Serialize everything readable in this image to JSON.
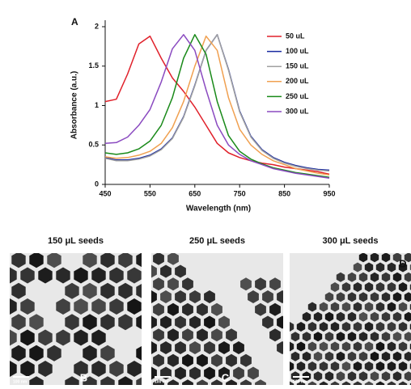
{
  "chart_data": {
    "type": "line",
    "panel_label": "A",
    "x_label": "Wavelength (nm)",
    "y_label": "Absorbance (a.u.)",
    "x": [
      450,
      475,
      500,
      525,
      550,
      575,
      600,
      625,
      650,
      675,
      700,
      725,
      750,
      775,
      800,
      825,
      850,
      875,
      900,
      925,
      950
    ],
    "xlim": [
      450,
      950
    ],
    "xticks": [
      450,
      550,
      650,
      750,
      850,
      950
    ],
    "ylim": [
      0,
      2
    ],
    "yticks": [
      0,
      0.5,
      1,
      1.5,
      2
    ],
    "series": [
      {
        "name": "50 uL",
        "color": "#e0202a",
        "values": [
          1.05,
          1.08,
          1.4,
          1.78,
          1.88,
          1.6,
          1.35,
          1.18,
          0.98,
          0.75,
          0.52,
          0.4,
          0.34,
          0.3,
          0.27,
          0.25,
          0.22,
          0.2,
          0.18,
          0.16,
          0.13
        ]
      },
      {
        "name": "100 uL",
        "color": "#1a2aa0",
        "values": [
          0.34,
          0.31,
          0.31,
          0.33,
          0.37,
          0.45,
          0.59,
          0.86,
          1.26,
          1.7,
          1.9,
          1.46,
          0.93,
          0.61,
          0.44,
          0.34,
          0.28,
          0.24,
          0.21,
          0.19,
          0.18
        ]
      },
      {
        "name": "150 uL",
        "color": "#a0a0a0",
        "values": [
          0.33,
          0.3,
          0.3,
          0.32,
          0.36,
          0.44,
          0.58,
          0.85,
          1.25,
          1.7,
          1.9,
          1.45,
          0.92,
          0.6,
          0.43,
          0.33,
          0.27,
          0.23,
          0.2,
          0.18,
          0.17
        ]
      },
      {
        "name": "200 uL",
        "color": "#f0a050",
        "values": [
          0.35,
          0.33,
          0.34,
          0.37,
          0.42,
          0.52,
          0.72,
          1.05,
          1.5,
          1.88,
          1.7,
          1.1,
          0.7,
          0.5,
          0.38,
          0.3,
          0.25,
          0.2,
          0.17,
          0.14,
          0.12
        ]
      },
      {
        "name": "250 uL",
        "color": "#1a8a1a",
        "values": [
          0.4,
          0.38,
          0.4,
          0.45,
          0.55,
          0.75,
          1.1,
          1.6,
          1.9,
          1.65,
          1.05,
          0.62,
          0.42,
          0.32,
          0.26,
          0.21,
          0.18,
          0.15,
          0.13,
          0.11,
          0.09
        ]
      },
      {
        "name": "300 uL",
        "color": "#8a4ac0",
        "values": [
          0.52,
          0.53,
          0.6,
          0.75,
          0.95,
          1.3,
          1.72,
          1.9,
          1.7,
          1.2,
          0.75,
          0.5,
          0.38,
          0.3,
          0.25,
          0.2,
          0.17,
          0.14,
          0.12,
          0.1,
          0.08
        ]
      }
    ]
  },
  "panels": [
    {
      "title": "150 μL seeds",
      "letter": "B",
      "scale": "100 nm"
    },
    {
      "title": "250 μL seeds",
      "letter": "C",
      "scale": "100 nm"
    },
    {
      "title": "300 μL seeds",
      "letter": "D",
      "scale": "100 nm"
    }
  ]
}
